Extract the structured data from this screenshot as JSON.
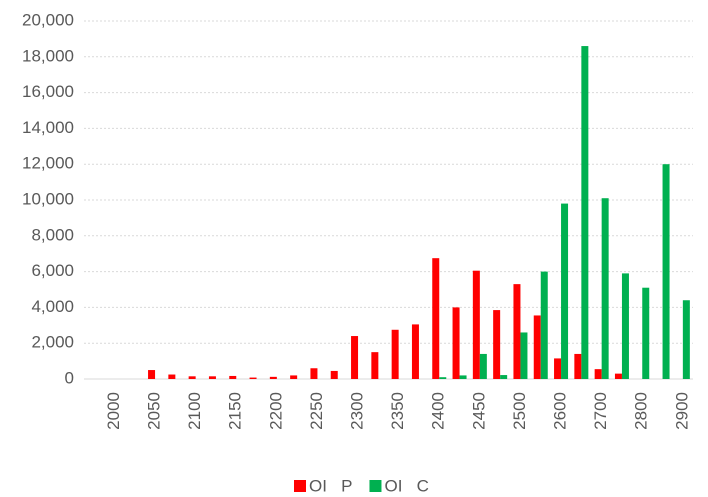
{
  "chart_data": {
    "type": "bar",
    "categories": [
      null,
      "2000",
      null,
      "2050",
      null,
      "2100",
      null,
      "2150",
      null,
      "2200",
      null,
      "2250",
      null,
      "2300",
      null,
      "2350",
      null,
      "2400",
      null,
      "2450",
      null,
      "2500",
      null,
      "2600",
      null,
      "2700",
      null,
      "2800",
      null,
      "2900"
    ],
    "series": [
      {
        "name": "OI   P",
        "color": "#ff0000",
        "values": [
          0,
          0,
          0,
          500,
          250,
          150,
          150,
          170,
          80,
          120,
          200,
          600,
          450,
          2400,
          1500,
          2750,
          3050,
          6750,
          4000,
          6050,
          3850,
          5300,
          3550,
          1150,
          1400,
          550,
          300,
          0,
          0,
          0
        ]
      },
      {
        "name": "OI   C",
        "color": "#00b050",
        "values": [
          0,
          0,
          0,
          0,
          0,
          0,
          0,
          0,
          0,
          0,
          0,
          0,
          0,
          0,
          0,
          0,
          0,
          100,
          200,
          1400,
          220,
          2600,
          6000,
          9800,
          18600,
          10100,
          5900,
          5100,
          12000,
          4400
        ]
      }
    ],
    "ylim": [
      0,
      20000
    ],
    "yticks": [
      0,
      {
        "value": 2000,
        "label": "2,000"
      },
      {
        "value": 4000,
        "label": "4,000"
      },
      {
        "value": 6000,
        "label": "6,000"
      },
      {
        "value": 8000,
        "label": "8,000"
      },
      {
        "value": 10000,
        "label": "10,000"
      },
      {
        "value": 12000,
        "label": "12,000"
      },
      {
        "value": 14000,
        "label": "14,000"
      },
      {
        "value": 16000,
        "label": "16,000"
      },
      {
        "value": 18000,
        "label": "18,000"
      },
      {
        "value": 20000,
        "label": "20,000"
      }
    ],
    "grid": true,
    "legend": "bottom"
  }
}
